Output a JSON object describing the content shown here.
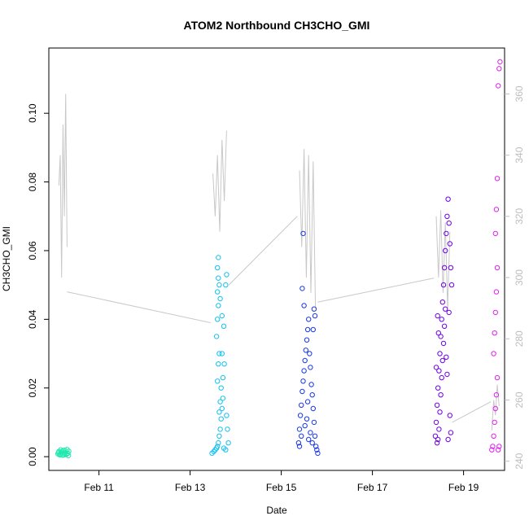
{
  "chart_data": {
    "type": "scatter",
    "title": "ATOM2 Northbound CH3CHO_GMI",
    "xlabel": "Date",
    "ylabel": "CH3CHO_GMI",
    "x_ticks": [
      "Feb 11",
      "Feb 13",
      "Feb 15",
      "Feb 17",
      "Feb 19"
    ],
    "x_tick_days": [
      11,
      13,
      15,
      17,
      19
    ],
    "xlim_days": [
      9.9,
      19.9
    ],
    "y_ticks": [
      "0.00",
      "0.02",
      "0.04",
      "0.06",
      "0.08",
      "0.10"
    ],
    "y_tick_values": [
      0,
      0.02,
      0.04,
      0.06,
      0.08,
      0.1
    ],
    "ylim": [
      -0.004,
      0.119
    ],
    "y2_ticks": [
      "240",
      "260",
      "280",
      "300",
      "320",
      "340",
      "360"
    ],
    "y2_tick_values": [
      240,
      260,
      280,
      300,
      320,
      340,
      360
    ],
    "y2lim": [
      237,
      375
    ],
    "colors": {
      "flight1": "#22e8b0",
      "flight2": "#14c0f0",
      "flight3": "#1838e8",
      "flight4": "#7000e8",
      "flight5": "#e020f0",
      "secondary_line": "#c8c8c8",
      "axis": "#000000",
      "right_axis": "#bdbdbd"
    },
    "series": [
      {
        "day_range": [
          10.1,
          10.35
        ],
        "y_range": [
          0.0003,
          0.0022
        ],
        "secondary_profile": [
          [
            10.12,
            330
          ],
          [
            10.15,
            340
          ],
          [
            10.18,
            300
          ],
          [
            10.21,
            350
          ],
          [
            10.24,
            320
          ],
          [
            10.27,
            360
          ],
          [
            10.3,
            310
          ]
        ],
        "points": [
          [
            10.1,
            0.0008
          ],
          [
            10.12,
            0.0015
          ],
          [
            10.14,
            0.0005
          ],
          [
            10.16,
            0.002
          ],
          [
            10.18,
            0.0011
          ],
          [
            10.2,
            0.0004
          ],
          [
            10.22,
            0.0018
          ],
          [
            10.24,
            0.0009
          ],
          [
            10.26,
            0.0013
          ],
          [
            10.28,
            0.0006
          ],
          [
            10.3,
            0.0021
          ],
          [
            10.32,
            0.001
          ],
          [
            10.34,
            0.0016
          ],
          [
            10.15,
            0.0007
          ],
          [
            10.25,
            0.0019
          ],
          [
            10.11,
            0.0012
          ],
          [
            10.19,
            0.0016
          ],
          [
            10.23,
            0.0005
          ],
          [
            10.29,
            0.0009
          ],
          [
            10.33,
            0.0003
          ]
        ]
      },
      {
        "day_range": [
          13.45,
          13.85
        ],
        "y_range": [
          0.001,
          0.058
        ],
        "secondary_profile": [
          [
            13.5,
            334
          ],
          [
            13.55,
            320
          ],
          [
            13.6,
            340
          ],
          [
            13.65,
            315
          ],
          [
            13.7,
            345
          ],
          [
            13.75,
            325
          ],
          [
            13.8,
            348
          ]
        ],
        "points": [
          [
            13.48,
            0.001
          ],
          [
            13.52,
            0.0015
          ],
          [
            13.55,
            0.002
          ],
          [
            13.58,
            0.0025
          ],
          [
            13.6,
            0.003
          ],
          [
            13.62,
            0.004
          ],
          [
            13.64,
            0.006
          ],
          [
            13.66,
            0.008
          ],
          [
            13.68,
            0.011
          ],
          [
            13.7,
            0.014
          ],
          [
            13.72,
            0.017
          ],
          [
            13.6,
            0.022
          ],
          [
            13.62,
            0.027
          ],
          [
            13.64,
            0.03
          ],
          [
            13.58,
            0.035
          ],
          [
            13.6,
            0.04
          ],
          [
            13.62,
            0.044
          ],
          [
            13.6,
            0.048
          ],
          [
            13.62,
            0.052
          ],
          [
            13.6,
            0.055
          ],
          [
            13.62,
            0.058
          ],
          [
            13.64,
            0.05
          ],
          [
            13.66,
            0.046
          ],
          [
            13.7,
            0.041
          ],
          [
            13.74,
            0.038
          ],
          [
            13.78,
            0.05
          ],
          [
            13.8,
            0.053
          ],
          [
            13.75,
            0.027
          ],
          [
            13.7,
            0.03
          ],
          [
            13.8,
            0.012
          ],
          [
            13.82,
            0.008
          ],
          [
            13.84,
            0.004
          ],
          [
            13.78,
            0.002
          ],
          [
            13.74,
            0.0025
          ],
          [
            13.68,
            0.02
          ],
          [
            13.72,
            0.023
          ],
          [
            13.64,
            0.013
          ],
          [
            13.66,
            0.016
          ]
        ]
      },
      {
        "day_range": [
          15.35,
          15.8
        ],
        "y_range": [
          0.001,
          0.065
        ],
        "secondary_profile": [
          [
            15.4,
            335
          ],
          [
            15.45,
            310
          ],
          [
            15.5,
            342
          ],
          [
            15.55,
            300
          ],
          [
            15.6,
            340
          ],
          [
            15.65,
            295
          ],
          [
            15.7,
            338
          ],
          [
            15.75,
            290
          ]
        ],
        "points": [
          [
            15.38,
            0.004
          ],
          [
            15.4,
            0.008
          ],
          [
            15.42,
            0.012
          ],
          [
            15.44,
            0.015
          ],
          [
            15.46,
            0.019
          ],
          [
            15.48,
            0.022
          ],
          [
            15.5,
            0.025
          ],
          [
            15.52,
            0.028
          ],
          [
            15.54,
            0.031
          ],
          [
            15.56,
            0.034
          ],
          [
            15.58,
            0.037
          ],
          [
            15.6,
            0.04
          ],
          [
            15.46,
            0.049
          ],
          [
            15.48,
            0.065
          ],
          [
            15.5,
            0.044
          ],
          [
            15.62,
            0.03
          ],
          [
            15.64,
            0.026
          ],
          [
            15.66,
            0.021
          ],
          [
            15.68,
            0.018
          ],
          [
            15.7,
            0.014
          ],
          [
            15.72,
            0.01
          ],
          [
            15.74,
            0.006
          ],
          [
            15.76,
            0.003
          ],
          [
            15.78,
            0.002
          ],
          [
            15.8,
            0.001
          ],
          [
            15.7,
            0.037
          ],
          [
            15.72,
            0.043
          ],
          [
            15.74,
            0.041
          ],
          [
            15.44,
            0.006
          ],
          [
            15.52,
            0.009
          ],
          [
            15.56,
            0.011
          ],
          [
            15.6,
            0.005
          ],
          [
            15.64,
            0.007
          ],
          [
            15.68,
            0.004
          ],
          [
            15.4,
            0.003
          ],
          [
            15.58,
            0.016
          ]
        ]
      },
      {
        "day_range": [
          18.35,
          18.75
        ],
        "y_range": [
          0.004,
          0.075
        ],
        "secondary_profile": [
          [
            18.4,
            320
          ],
          [
            18.45,
            300
          ],
          [
            18.5,
            322
          ],
          [
            18.55,
            295
          ],
          [
            18.6,
            318
          ],
          [
            18.65,
            290
          ],
          [
            18.7,
            315
          ]
        ],
        "points": [
          [
            18.38,
            0.006
          ],
          [
            18.4,
            0.01
          ],
          [
            18.42,
            0.015
          ],
          [
            18.44,
            0.02
          ],
          [
            18.46,
            0.025
          ],
          [
            18.48,
            0.03
          ],
          [
            18.5,
            0.035
          ],
          [
            18.52,
            0.04
          ],
          [
            18.54,
            0.045
          ],
          [
            18.56,
            0.05
          ],
          [
            18.58,
            0.055
          ],
          [
            18.6,
            0.06
          ],
          [
            18.62,
            0.065
          ],
          [
            18.64,
            0.07
          ],
          [
            18.66,
            0.075
          ],
          [
            18.68,
            0.068
          ],
          [
            18.7,
            0.062
          ],
          [
            18.72,
            0.055
          ],
          [
            18.74,
            0.05
          ],
          [
            18.6,
            0.043
          ],
          [
            18.58,
            0.038
          ],
          [
            18.56,
            0.033
          ],
          [
            18.54,
            0.028
          ],
          [
            18.52,
            0.023
          ],
          [
            18.5,
            0.018
          ],
          [
            18.48,
            0.013
          ],
          [
            18.46,
            0.008
          ],
          [
            18.44,
            0.005
          ],
          [
            18.42,
            0.004
          ],
          [
            18.7,
            0.012
          ],
          [
            18.72,
            0.007
          ],
          [
            18.66,
            0.005
          ],
          [
            18.64,
            0.024
          ],
          [
            18.62,
            0.029
          ],
          [
            18.68,
            0.042
          ],
          [
            18.45,
            0.036
          ],
          [
            18.43,
            0.041
          ],
          [
            18.4,
            0.026
          ]
        ]
      },
      {
        "day_range": [
          19.6,
          19.8
        ],
        "y_range": [
          0.002,
          0.115
        ],
        "secondary_profile": [
          [
            19.62,
            250
          ],
          [
            19.66,
            260
          ],
          [
            19.7,
            255
          ],
          [
            19.74,
            265
          ],
          [
            19.78,
            258
          ]
        ],
        "points": [
          [
            19.62,
            0.002
          ],
          [
            19.64,
            0.003
          ],
          [
            19.66,
            0.006
          ],
          [
            19.68,
            0.01
          ],
          [
            19.7,
            0.014
          ],
          [
            19.72,
            0.018
          ],
          [
            19.74,
            0.023
          ],
          [
            19.66,
            0.03
          ],
          [
            19.68,
            0.036
          ],
          [
            19.7,
            0.042
          ],
          [
            19.72,
            0.048
          ],
          [
            19.74,
            0.055
          ],
          [
            19.7,
            0.065
          ],
          [
            19.72,
            0.072
          ],
          [
            19.74,
            0.081
          ],
          [
            19.76,
            0.108
          ],
          [
            19.78,
            0.113
          ],
          [
            19.8,
            0.115
          ],
          [
            19.76,
            0.002
          ],
          [
            19.78,
            0.003
          ]
        ]
      }
    ],
    "connector_lines": [
      [
        [
          10.3,
          0.048
        ],
        [
          13.45,
          0.039
        ]
      ],
      [
        [
          13.85,
          0.05
        ],
        [
          15.35,
          0.07
        ]
      ],
      [
        [
          15.8,
          0.045
        ],
        [
          18.35,
          0.052
        ]
      ],
      [
        [
          18.75,
          0.01
        ],
        [
          19.6,
          0.016
        ]
      ]
    ]
  }
}
